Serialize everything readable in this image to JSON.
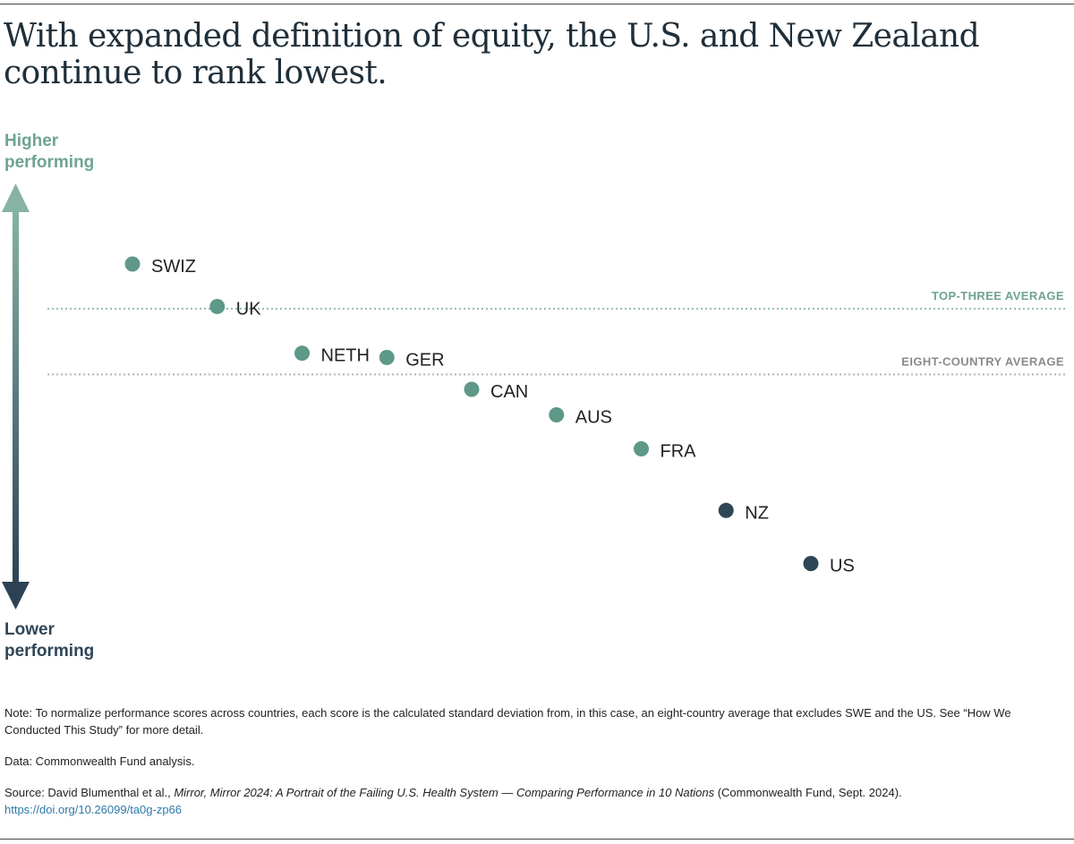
{
  "title": "With expanded definition of equity, the U.S. and New Zealand continue to rank lowest.",
  "axis": {
    "high_line1": "Higher",
    "high_line2": "performing",
    "low_line1": "Lower",
    "low_line2": "performing"
  },
  "colors": {
    "high": "#6fa394",
    "low": "#2f4657",
    "dot_high": "#5e9888",
    "dot_low": "#2c4756",
    "top_three_line": "#8fbfb0",
    "eight_country_line": "#b5b5b5",
    "top_three_text": "#6fa394",
    "eight_country_text": "#8a8a8a"
  },
  "chart_data": {
    "type": "scatter",
    "title": "With expanded definition of equity, the U.S. and New Zealand continue to rank lowest.",
    "ylabel": "Higher performing / Lower performing (standard deviation from eight-country average)",
    "ylim": [
      -0.9,
      0.6
    ],
    "reference_lines": [
      {
        "label": "TOP-THREE AVERAGE",
        "value": 0.31
      },
      {
        "label": "EIGHT-COUNTRY AVERAGE",
        "value": 0.0
      }
    ],
    "points": [
      {
        "label": "SWIZ",
        "rank": 1,
        "value": 0.52,
        "group": "high"
      },
      {
        "label": "UK",
        "rank": 2,
        "value": 0.32,
        "group": "high"
      },
      {
        "label": "NETH",
        "rank": 3,
        "value": 0.1,
        "group": "high"
      },
      {
        "label": "GER",
        "rank": 4,
        "value": 0.08,
        "group": "high"
      },
      {
        "label": "CAN",
        "rank": 5,
        "value": -0.07,
        "group": "high"
      },
      {
        "label": "AUS",
        "rank": 6,
        "value": -0.19,
        "group": "high"
      },
      {
        "label": "FRA",
        "rank": 7,
        "value": -0.35,
        "group": "high"
      },
      {
        "label": "NZ",
        "rank": 8,
        "value": -0.64,
        "group": "low"
      },
      {
        "label": "US",
        "rank": 9,
        "value": -0.89,
        "group": "low"
      }
    ]
  },
  "notes": {
    "note": "Note: To normalize performance scores across countries, each score is the calculated standard deviation from, in this case, an eight-country average that excludes SWE and the US. See “How We Conducted This Study” for more detail.",
    "data": "Data: Commonwealth Fund analysis.",
    "source_prefix": "Source: David Blumenthal et al., ",
    "source_title": "Mirror, Mirror 2024: A Portrait of the Failing U.S. Health System — Comparing Performance in 10 Nations",
    "source_suffix": " (Commonwealth Fund, Sept. 2024).",
    "link": "https://doi.org/10.26099/ta0g-zp66"
  }
}
